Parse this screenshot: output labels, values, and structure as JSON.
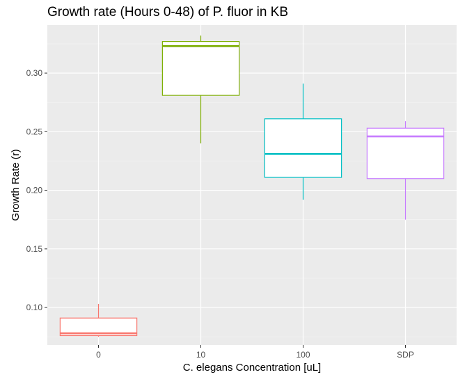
{
  "chart_data": {
    "type": "box",
    "title": "Growth rate (Hours 0-48) of P. fluor in KB",
    "xlabel": "C. elegans Concentration [uL]",
    "ylabel": "Growth Rate (r)",
    "categories": [
      "0",
      "10",
      "100",
      "SDP"
    ],
    "colors": [
      "#F8766D",
      "#7CAE00",
      "#00BFC4",
      "#C77CFF"
    ],
    "ylim": [
      0.068,
      0.341
    ],
    "y_ticks": [
      0.1,
      0.15,
      0.2,
      0.25,
      0.3
    ],
    "y_tick_labels": [
      "0.10",
      "0.15",
      "0.20",
      "0.25",
      "0.30"
    ],
    "grid": true,
    "background": "#EBEBEB",
    "boxes": [
      {
        "category": "0",
        "min": 0.075,
        "q1": 0.076,
        "median": 0.078,
        "q3": 0.091,
        "max": 0.103
      },
      {
        "category": "10",
        "min": 0.24,
        "q1": 0.281,
        "median": 0.323,
        "q3": 0.327,
        "max": 0.332
      },
      {
        "category": "100",
        "min": 0.192,
        "q1": 0.211,
        "median": 0.231,
        "q3": 0.261,
        "max": 0.291
      },
      {
        "category": "SDP",
        "min": 0.175,
        "q1": 0.21,
        "median": 0.246,
        "q3": 0.253,
        "max": 0.259
      }
    ]
  }
}
